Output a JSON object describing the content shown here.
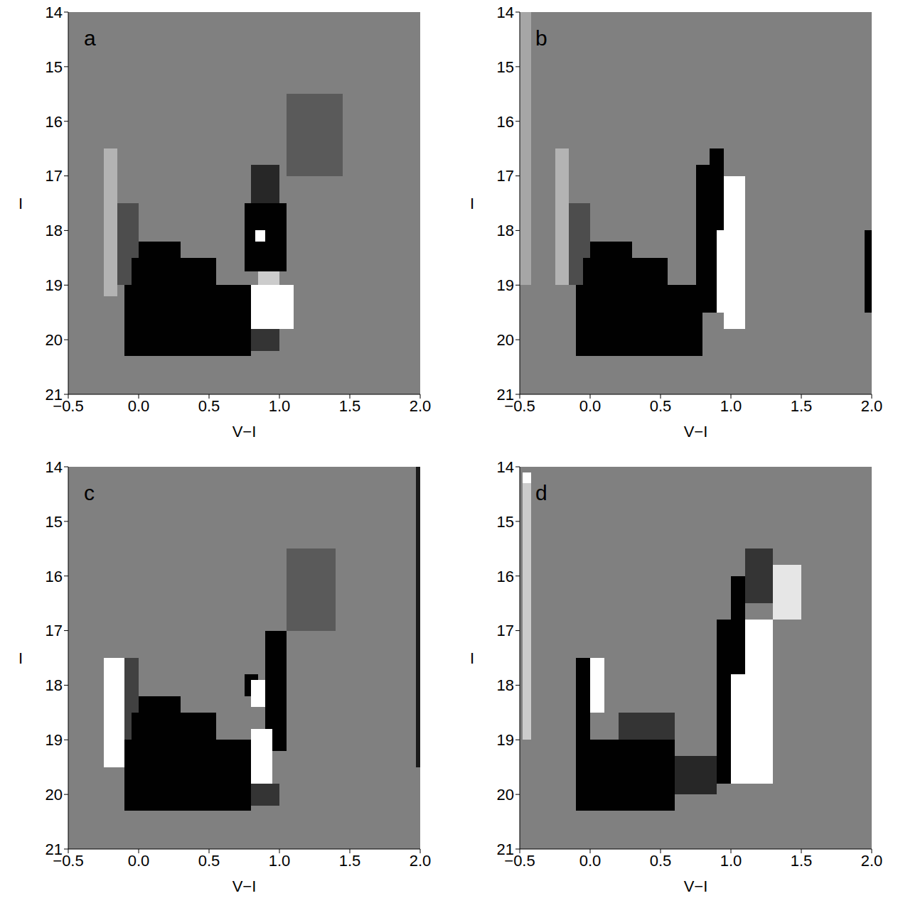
{
  "chart_data": [
    {
      "type": "heatmap",
      "title": "a",
      "xlabel": "V−I",
      "ylabel": "I",
      "xlim": [
        -0.5,
        2.0
      ],
      "ylim": [
        21,
        14
      ],
      "xticks": [
        {
          "value": -0.5,
          "label": "−0.5"
        },
        {
          "value": 0,
          "label": "0.0"
        },
        0.5,
        {
          "value": 1,
          "label": "1.0"
        },
        1.5,
        {
          "value": 2,
          "label": "2.0"
        }
      ],
      "yticks": [
        14,
        15,
        16,
        17,
        18,
        19,
        20,
        21
      ],
      "cells": [
        {
          "x": [
            -0.25,
            -0.15
          ],
          "y": [
            16.5,
            19.2
          ],
          "value": 0.4
        },
        {
          "x": [
            -0.15,
            0.0
          ],
          "y": [
            17.5,
            19.0
          ],
          "value": -0.4
        },
        {
          "x": [
            0.0,
            0.3
          ],
          "y": [
            18.2,
            18.5
          ],
          "value": -1
        },
        {
          "x": [
            -0.05,
            0.55
          ],
          "y": [
            18.5,
            19.0
          ],
          "value": -1
        },
        {
          "x": [
            -0.1,
            0.8
          ],
          "y": [
            19.0,
            20.3
          ],
          "value": -1
        },
        {
          "x": [
            1.05,
            1.45
          ],
          "y": [
            15.5,
            17.0
          ],
          "value": -0.3
        },
        {
          "x": [
            0.8,
            1.0
          ],
          "y": [
            16.8,
            17.5
          ],
          "value": -0.7
        },
        {
          "x": [
            0.75,
            1.05
          ],
          "y": [
            17.5,
            18.75
          ],
          "value": -1
        },
        {
          "x": [
            0.83,
            0.9
          ],
          "y": [
            18.0,
            18.2
          ],
          "value": 1
        },
        {
          "x": [
            0.85,
            1.0
          ],
          "y": [
            18.75,
            19.0
          ],
          "value": 0.6
        },
        {
          "x": [
            0.8,
            1.1
          ],
          "y": [
            19.0,
            19.8
          ],
          "value": 1
        },
        {
          "x": [
            0.8,
            1.0
          ],
          "y": [
            19.8,
            20.2
          ],
          "value": -0.6
        }
      ]
    },
    {
      "type": "heatmap",
      "title": "b",
      "xlabel": "V−I",
      "ylabel": "I",
      "xlim": [
        -0.5,
        2.0
      ],
      "ylim": [
        21,
        14
      ],
      "xticks": [
        {
          "value": -0.5,
          "label": "−0.5"
        },
        {
          "value": 0,
          "label": "0.0"
        },
        0.5,
        {
          "value": 1,
          "label": "1.0"
        },
        1.5,
        {
          "value": 2,
          "label": "2.0"
        }
      ],
      "yticks": [
        14,
        15,
        16,
        17,
        18,
        19,
        20,
        21
      ],
      "cells": [
        {
          "x": [
            -0.5,
            -0.42
          ],
          "y": [
            14.0,
            19.0
          ],
          "value": 0.3
        },
        {
          "x": [
            -0.25,
            -0.15
          ],
          "y": [
            16.5,
            19.0
          ],
          "value": 0.4
        },
        {
          "x": [
            -0.15,
            0.0
          ],
          "y": [
            17.5,
            19.0
          ],
          "value": -0.4
        },
        {
          "x": [
            0.0,
            0.3
          ],
          "y": [
            18.2,
            18.5
          ],
          "value": -1
        },
        {
          "x": [
            -0.05,
            0.55
          ],
          "y": [
            18.5,
            19.0
          ],
          "value": -1
        },
        {
          "x": [
            -0.1,
            0.8
          ],
          "y": [
            19.0,
            20.3
          ],
          "value": -1
        },
        {
          "x": [
            0.85,
            0.95
          ],
          "y": [
            16.5,
            16.8
          ],
          "value": -1
        },
        {
          "x": [
            0.75,
            0.9
          ],
          "y": [
            16.8,
            19.5
          ],
          "value": -1
        },
        {
          "x": [
            0.9,
            0.95
          ],
          "y": [
            16.8,
            18.0
          ],
          "value": -1
        },
        {
          "x": [
            0.9,
            0.95
          ],
          "y": [
            18.0,
            19.5
          ],
          "value": 1
        },
        {
          "x": [
            0.95,
            1.1
          ],
          "y": [
            17.0,
            19.8
          ],
          "value": 1
        },
        {
          "x": [
            1.95,
            2.0
          ],
          "y": [
            18.0,
            19.5
          ],
          "value": -1
        }
      ]
    },
    {
      "type": "heatmap",
      "title": "c",
      "xlabel": "V−I",
      "ylabel": "I",
      "xlim": [
        -0.5,
        2.0
      ],
      "ylim": [
        21,
        14
      ],
      "xticks": [
        {
          "value": -0.5,
          "label": "−0.5"
        },
        {
          "value": 0,
          "label": "0.0"
        },
        0.5,
        {
          "value": 1,
          "label": "1.0"
        },
        1.5,
        {
          "value": 2,
          "label": "2.0"
        }
      ],
      "yticks": [
        14,
        15,
        16,
        17,
        18,
        19,
        20,
        21
      ],
      "cells": [
        {
          "x": [
            -0.25,
            -0.1
          ],
          "y": [
            17.5,
            19.5
          ],
          "value": 1
        },
        {
          "x": [
            -0.1,
            0.0
          ],
          "y": [
            17.5,
            19.0
          ],
          "value": -0.5
        },
        {
          "x": [
            0.0,
            0.3
          ],
          "y": [
            18.2,
            18.5
          ],
          "value": -1
        },
        {
          "x": [
            -0.05,
            0.55
          ],
          "y": [
            18.5,
            19.0
          ],
          "value": -1
        },
        {
          "x": [
            -0.1,
            0.8
          ],
          "y": [
            19.0,
            20.3
          ],
          "value": -1
        },
        {
          "x": [
            1.05,
            1.4
          ],
          "y": [
            15.5,
            17.0
          ],
          "value": -0.3
        },
        {
          "x": [
            0.75,
            0.85
          ],
          "y": [
            17.8,
            18.2
          ],
          "value": -1
        },
        {
          "x": [
            0.9,
            1.05
          ],
          "y": [
            17.0,
            19.2
          ],
          "value": -1
        },
        {
          "x": [
            0.8,
            0.9
          ],
          "y": [
            17.9,
            18.4
          ],
          "value": 1
        },
        {
          "x": [
            0.8,
            0.95
          ],
          "y": [
            18.8,
            19.8
          ],
          "value": 1
        },
        {
          "x": [
            0.8,
            1.0
          ],
          "y": [
            19.8,
            20.2
          ],
          "value": -0.6
        },
        {
          "x": [
            1.97,
            2.0
          ],
          "y": [
            14.0,
            19.5
          ],
          "value": -0.8
        }
      ]
    },
    {
      "type": "heatmap",
      "title": "d",
      "xlabel": "V−I",
      "ylabel": "I",
      "xlim": [
        -0.5,
        2.0
      ],
      "ylim": [
        21,
        14
      ],
      "xticks": [
        {
          "value": -0.5,
          "label": "−0.5"
        },
        {
          "value": 0,
          "label": "0.0"
        },
        0.5,
        {
          "value": 1,
          "label": "1.0"
        },
        1.5,
        {
          "value": 2,
          "label": "2.0"
        }
      ],
      "yticks": [
        14,
        15,
        16,
        17,
        18,
        19,
        20,
        21
      ],
      "cells": [
        {
          "x": [
            -0.48,
            -0.42
          ],
          "y": [
            14.3,
            19.0
          ],
          "value": 0.6
        },
        {
          "x": [
            -0.48,
            -0.42
          ],
          "y": [
            14.1,
            14.3
          ],
          "value": 1
        },
        {
          "x": [
            -0.1,
            0.0
          ],
          "y": [
            17.5,
            19.0
          ],
          "value": -1
        },
        {
          "x": [
            0.0,
            0.1
          ],
          "y": [
            17.5,
            18.5
          ],
          "value": 1
        },
        {
          "x": [
            0.2,
            0.6
          ],
          "y": [
            18.5,
            19.0
          ],
          "value": -0.6
        },
        {
          "x": [
            -0.1,
            0.6
          ],
          "y": [
            19.0,
            20.3
          ],
          "value": -1
        },
        {
          "x": [
            0.6,
            0.9
          ],
          "y": [
            19.3,
            20.0
          ],
          "value": -0.7
        },
        {
          "x": [
            0.9,
            1.0
          ],
          "y": [
            16.8,
            19.8
          ],
          "value": -1
        },
        {
          "x": [
            1.0,
            1.1
          ],
          "y": [
            16.0,
            17.8
          ],
          "value": -1
        },
        {
          "x": [
            1.1,
            1.3
          ],
          "y": [
            15.5,
            16.5
          ],
          "value": -0.6
        },
        {
          "x": [
            1.0,
            1.3
          ],
          "y": [
            17.8,
            19.8
          ],
          "value": 1
        },
        {
          "x": [
            1.1,
            1.3
          ],
          "y": [
            16.8,
            17.8
          ],
          "value": 1
        },
        {
          "x": [
            1.3,
            1.5
          ],
          "y": [
            15.8,
            16.8
          ],
          "value": 0.8
        }
      ]
    }
  ]
}
